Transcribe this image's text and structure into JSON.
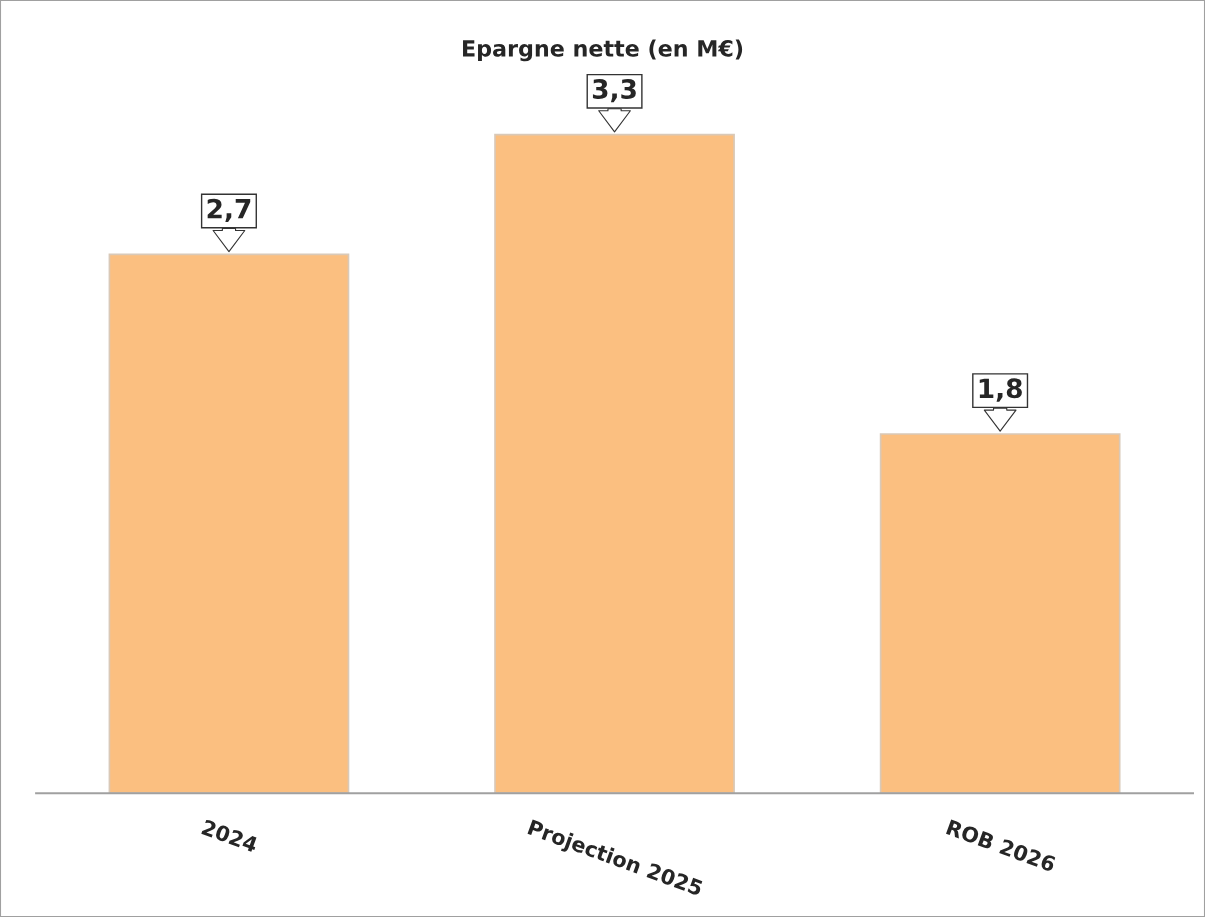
{
  "chart_data": {
    "type": "bar",
    "title": "Epargne nette (en M€)",
    "categories": [
      "2024",
      "Projection 2025",
      "ROB 2026"
    ],
    "values": [
      2.7,
      3.3,
      1.8
    ],
    "value_labels": [
      "2,7",
      "3,3",
      "1,8"
    ],
    "color": "#fbbf80",
    "grid": false,
    "legend": false
  }
}
